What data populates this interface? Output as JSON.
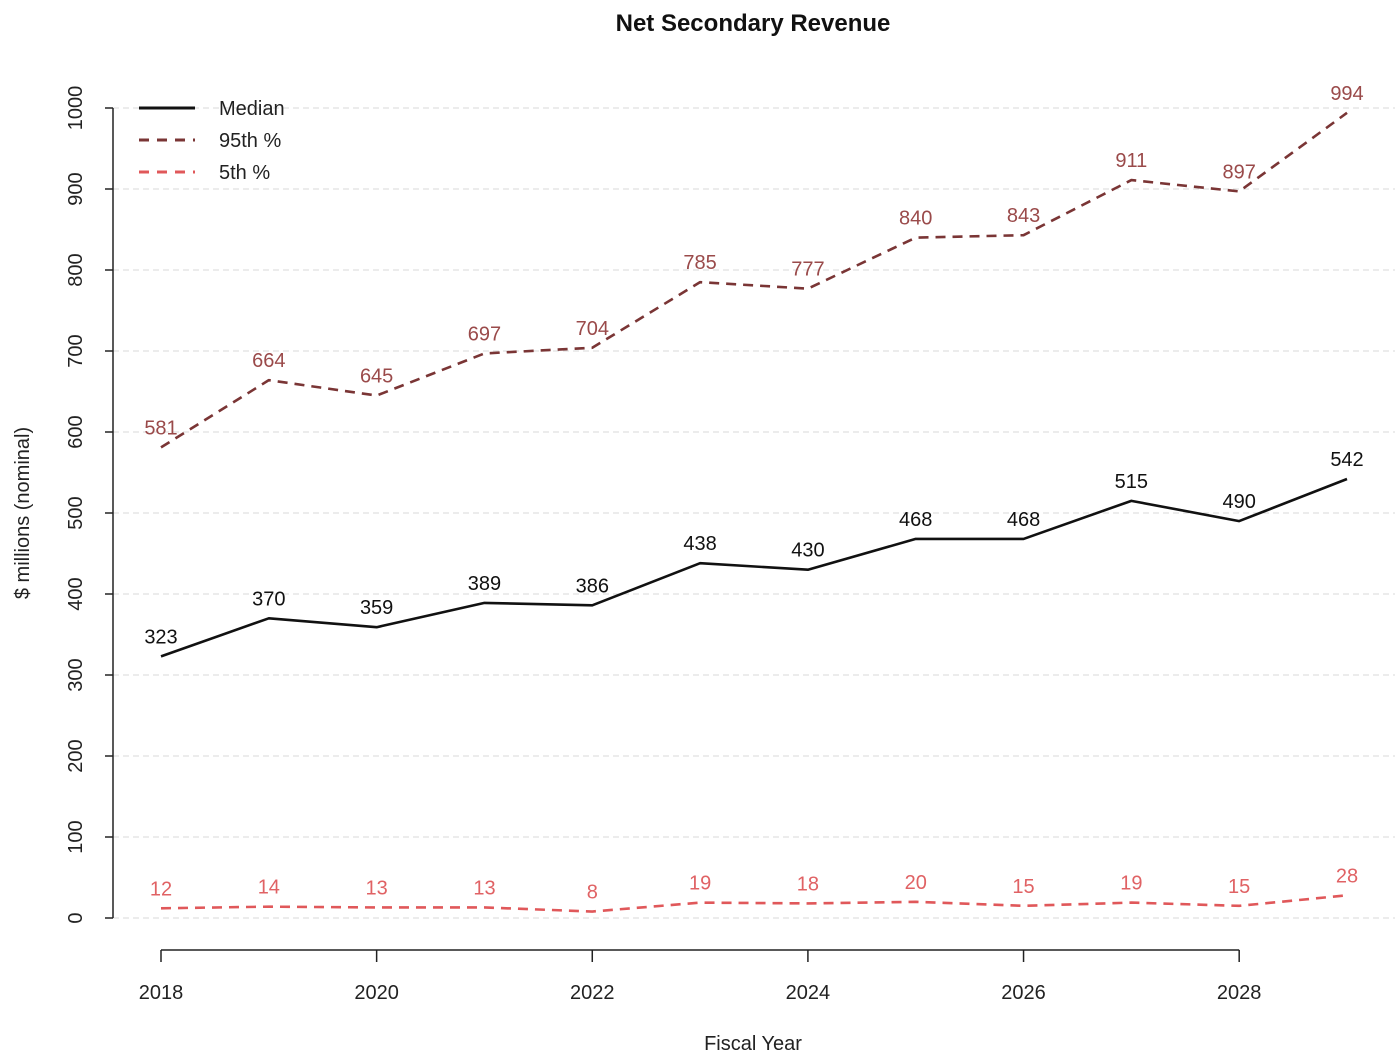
{
  "chart_data": {
    "type": "line",
    "title": "Net Secondary Revenue",
    "xlabel": "Fiscal Year",
    "ylabel": "$ millions (nominal)",
    "x": [
      2018,
      2019,
      2020,
      2021,
      2022,
      2023,
      2024,
      2025,
      2026,
      2027,
      2028,
      2029
    ],
    "xticks": [
      2018,
      2020,
      2022,
      2024,
      2026,
      2028
    ],
    "yticks": [
      0,
      100,
      200,
      300,
      400,
      500,
      600,
      700,
      800,
      900,
      1000
    ],
    "ylim": [
      0,
      1000
    ],
    "xlim": [
      2018,
      2029
    ],
    "grid": "horizontal",
    "legend": "top-left",
    "series": [
      {
        "name": "Median",
        "color": "#111111",
        "style": "solid",
        "values": [
          323,
          370,
          359,
          389,
          386,
          438,
          430,
          468,
          468,
          515,
          490,
          542
        ]
      },
      {
        "name": "95th %",
        "color": "#7a3535",
        "label_color": "#9a4a4a",
        "style": "dashed",
        "values": [
          581,
          664,
          645,
          697,
          704,
          785,
          777,
          840,
          843,
          911,
          897,
          994
        ]
      },
      {
        "name": "5th %",
        "color": "#e0585a",
        "label_color": "#e06264",
        "style": "dashed",
        "values": [
          12,
          14,
          13,
          13,
          8,
          19,
          18,
          20,
          15,
          19,
          15,
          28
        ]
      }
    ]
  }
}
